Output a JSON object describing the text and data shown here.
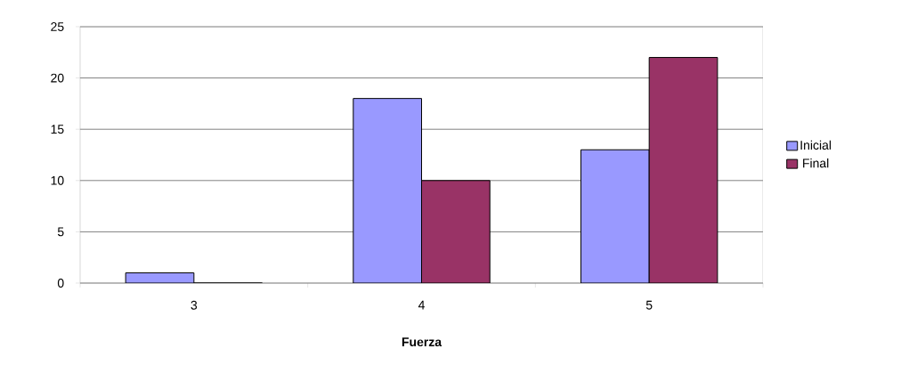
{
  "chart_data": {
    "type": "bar",
    "xlabel": "Fuerza",
    "categories": [
      "3",
      "4",
      "5"
    ],
    "series": [
      {
        "name": "Inicial",
        "color": "#9999ff",
        "values": [
          1,
          18,
          13
        ]
      },
      {
        "name": "Final",
        "color": "#993366",
        "values": [
          0,
          10,
          22
        ]
      }
    ],
    "ylim": [
      0,
      25
    ],
    "yticks": [
      0,
      5,
      10,
      15,
      20,
      25
    ],
    "grid": "y",
    "legend": "right"
  }
}
